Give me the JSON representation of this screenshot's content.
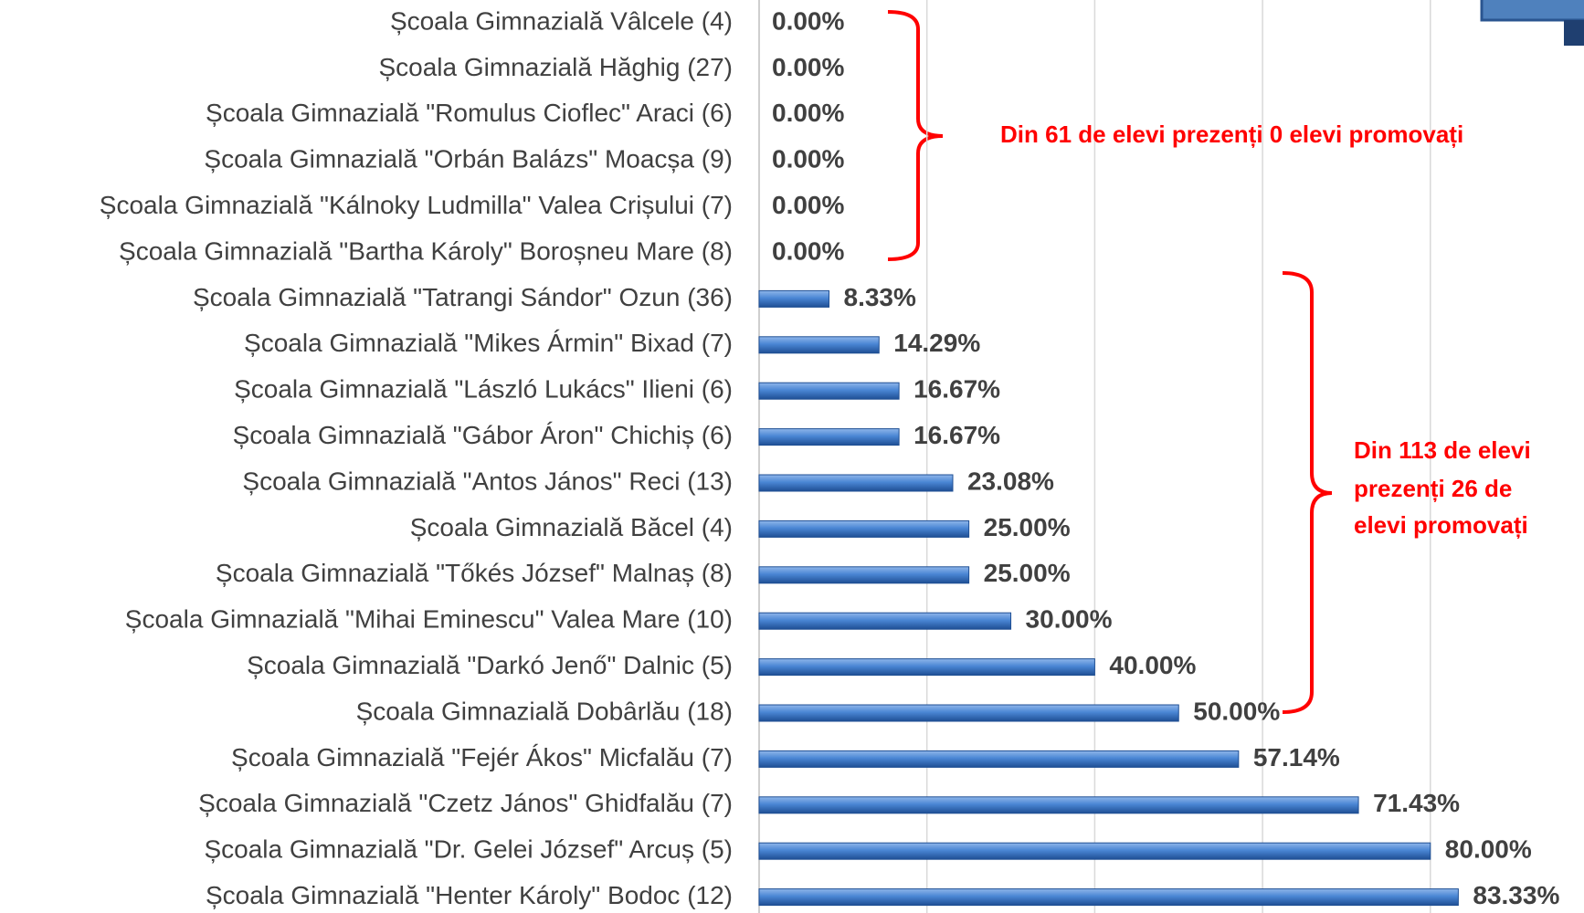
{
  "chart_data": {
    "type": "bar",
    "orientation": "horizontal",
    "categories": [
      "Școala Gimnazială Vâlcele (4)",
      "Școala Gimnazială Hăghig (27)",
      "Școala Gimnazială \"Romulus Cioflec\" Araci (6)",
      "Școala Gimnazială \"Orbán Balázs\" Moacșa (9)",
      "Școala Gimnazială \"Kálnoky Ludmilla\" Valea Crișului (7)",
      "Școala Gimnazială \"Bartha Károly\" Boroșneu Mare (8)",
      "Școala Gimnazială \"Tatrangi Sándor\" Ozun (36)",
      "Școala Gimnazială \"Mikes Ármin\" Bixad (7)",
      "Școala Gimnazială \"László Lukács\" Ilieni (6)",
      "Școala Gimnazială \"Gábor Áron\" Chichiș (6)",
      "Școala Gimnazială \"Antos János\" Reci (13)",
      "Școala Gimnazială Băcel (4)",
      "Școala Gimnazială \"Tőkés József\" Malnaș (8)",
      "Școala Gimnazială \"Mihai Eminescu\" Valea Mare (10)",
      "Școala Gimnazială \"Darkó Jenő\" Dalnic (5)",
      "Școala Gimnazială Dobârlău (18)",
      "Școala Gimnazială \"Fejér Ákos\" Micfalău (7)",
      "Școala Gimnazială \"Czetz János\" Ghidfalău (7)",
      "Școala Gimnazială \"Dr. Gelei József\" Arcuș (5)",
      "Școala Gimnazială \"Henter Károly\" Bodoc (12)"
    ],
    "values": [
      0,
      0,
      0,
      0,
      0,
      0,
      8.33,
      14.29,
      16.67,
      16.67,
      23.08,
      25,
      25,
      30,
      40,
      50,
      57.14,
      71.43,
      80,
      83.33
    ],
    "value_labels": [
      "0.00%",
      "0.00%",
      "0.00%",
      "0.00%",
      "0.00%",
      "0.00%",
      "8.33%",
      "14.29%",
      "16.67%",
      "16.67%",
      "23.08%",
      "25.00%",
      "25.00%",
      "30.00%",
      "40.00%",
      "50.00%",
      "57.14%",
      "71.43%",
      "80.00%",
      "83.33%"
    ],
    "color": "#3a76c4",
    "xlim": [
      0,
      100
    ],
    "xticks": [
      0,
      20,
      40,
      60,
      80
    ],
    "grid": true,
    "annotations": [
      {
        "lines": [
          "Din 61 de elevi prezenți 0 elevi promovați"
        ],
        "color": "#ff0000"
      },
      {
        "lines": [
          "Din 113 de elevi",
          "prezenți 26 de",
          "elevi promovați"
        ],
        "color": "#ff0000"
      }
    ]
  }
}
